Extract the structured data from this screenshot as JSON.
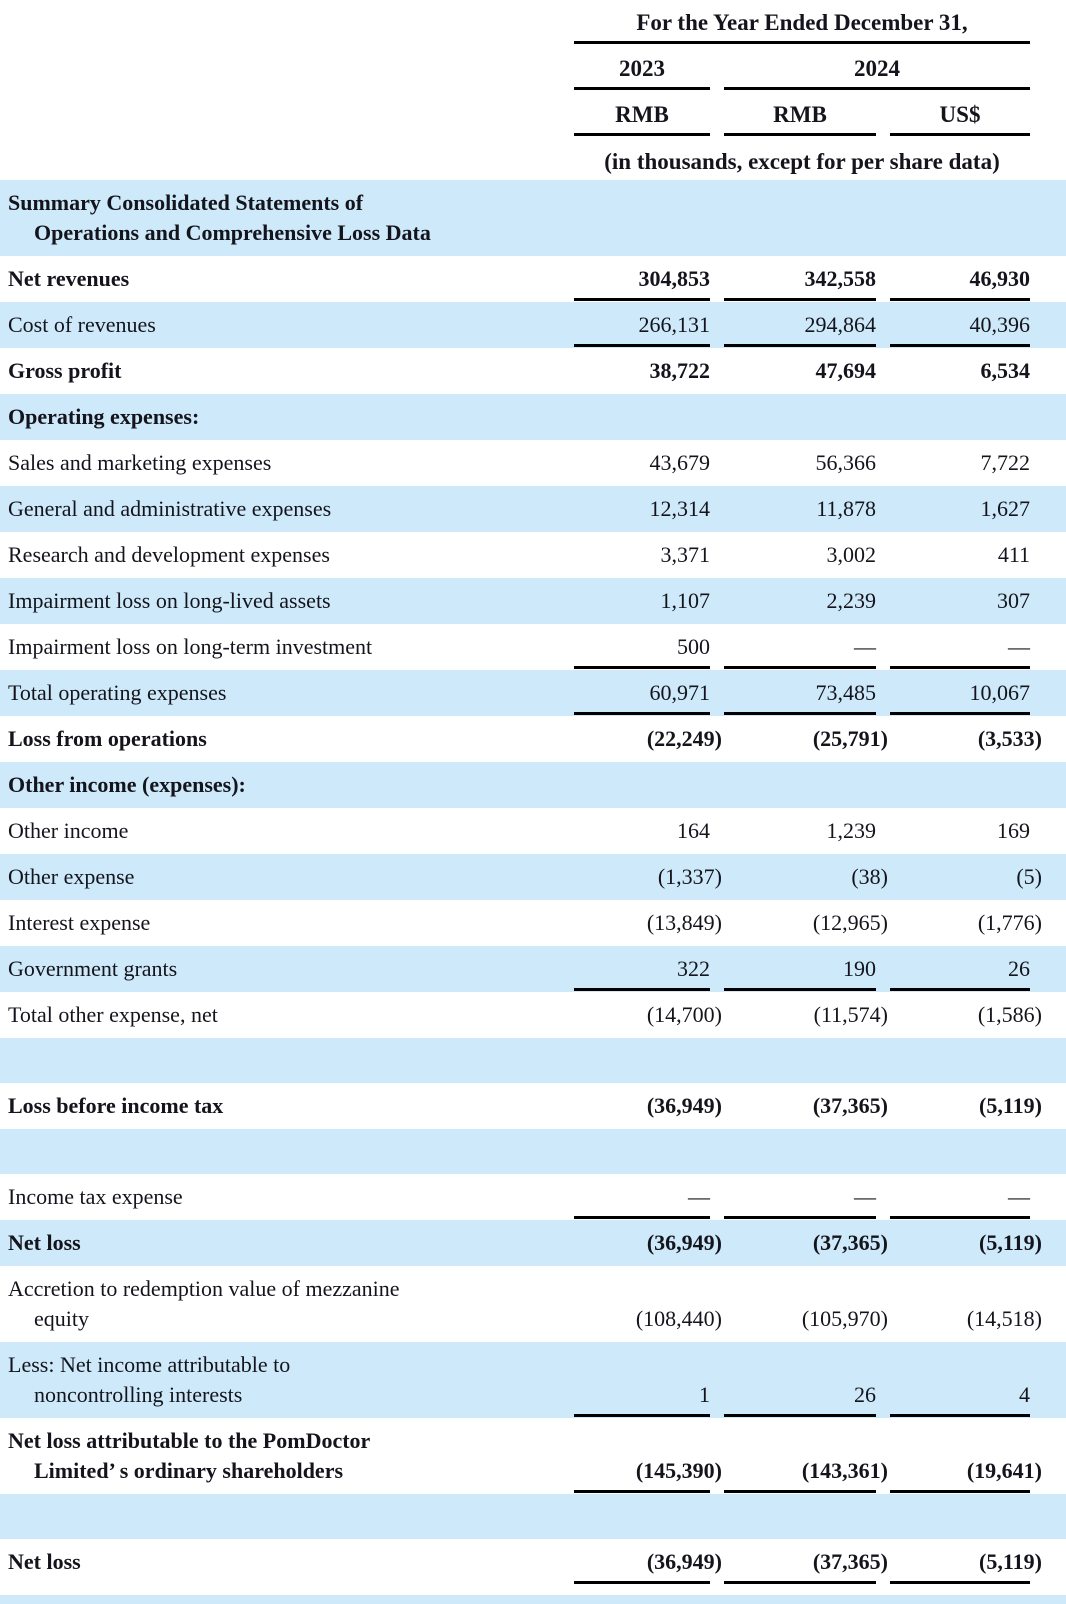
{
  "header": {
    "period_title": "For the Year Ended December 31,",
    "year_groups": [
      {
        "label": "2023"
      },
      {
        "label": "2024"
      }
    ],
    "units": [
      "RMB",
      "RMB",
      "US$"
    ],
    "note": "(in thousands, except for per share data)"
  },
  "colors": {
    "row_highlight": "#cde9fa",
    "rule": "#000000",
    "text": "#14141c"
  },
  "rows": [
    {
      "label_lines": [
        "Summary Consolidated Statements of",
        "Operations and Comprehensive Loss Data"
      ],
      "values": [
        "",
        "",
        ""
      ],
      "bold": true,
      "shaded": true
    },
    {
      "label_lines": [
        "Net revenues"
      ],
      "values": [
        "304,853",
        "342,558",
        "46,930"
      ],
      "bold": true,
      "rule": true
    },
    {
      "label_lines": [
        "Cost of revenues"
      ],
      "values": [
        "266,131",
        "294,864",
        "40,396"
      ],
      "shaded": true,
      "rule": true
    },
    {
      "label_lines": [
        "Gross profit"
      ],
      "values": [
        "38,722",
        "47,694",
        "6,534"
      ],
      "bold": true
    },
    {
      "label_lines": [
        "Operating expenses:"
      ],
      "values": [
        "",
        "",
        ""
      ],
      "bold": true,
      "shaded": true
    },
    {
      "label_lines": [
        "Sales and marketing expenses"
      ],
      "values": [
        "43,679",
        "56,366",
        "7,722"
      ]
    },
    {
      "label_lines": [
        "General and administrative expenses"
      ],
      "values": [
        "12,314",
        "11,878",
        "1,627"
      ],
      "shaded": true
    },
    {
      "label_lines": [
        "Research and development expenses"
      ],
      "values": [
        "3,371",
        "3,002",
        "411"
      ]
    },
    {
      "label_lines": [
        "Impairment loss on long-lived assets"
      ],
      "values": [
        "1,107",
        "2,239",
        "307"
      ],
      "shaded": true
    },
    {
      "label_lines": [
        "Impairment loss on long-term investment"
      ],
      "values": [
        "500",
        "—",
        "—"
      ],
      "rule": true
    },
    {
      "label_lines": [
        "Total operating expenses"
      ],
      "values": [
        "60,971",
        "73,485",
        "10,067"
      ],
      "shaded": true,
      "rule": true
    },
    {
      "label_lines": [
        "Loss from operations"
      ],
      "values": [
        "(22,249)",
        "(25,791)",
        "(3,533)"
      ],
      "bold": true
    },
    {
      "label_lines": [
        "Other income (expenses):"
      ],
      "values": [
        "",
        "",
        ""
      ],
      "bold": true,
      "shaded": true
    },
    {
      "label_lines": [
        "Other income"
      ],
      "values": [
        "164",
        "1,239",
        "169"
      ]
    },
    {
      "label_lines": [
        "Other expense"
      ],
      "values": [
        "(1,337)",
        "(38)",
        "(5)"
      ],
      "shaded": true
    },
    {
      "label_lines": [
        "Interest expense"
      ],
      "values": [
        "(13,849)",
        "(12,965)",
        "(1,776)"
      ]
    },
    {
      "label_lines": [
        "Government grants"
      ],
      "values": [
        "322",
        "190",
        "26"
      ],
      "shaded": true,
      "rule": true
    },
    {
      "label_lines": [
        "Total other expense, net"
      ],
      "values": [
        "(14,700)",
        "(11,574)",
        "(1,586)"
      ]
    },
    {
      "type": "spacer",
      "shaded": true
    },
    {
      "label_lines": [
        "Loss before income tax"
      ],
      "values": [
        "(36,949)",
        "(37,365)",
        "(5,119)"
      ],
      "bold": true
    },
    {
      "type": "spacer",
      "shaded": true
    },
    {
      "label_lines": [
        "Income tax expense"
      ],
      "values": [
        "—",
        "—",
        "—"
      ],
      "rule": true
    },
    {
      "label_lines": [
        "Net loss"
      ],
      "values": [
        "(36,949)",
        "(37,365)",
        "(5,119)"
      ],
      "bold": true,
      "shaded": true
    },
    {
      "label_lines": [
        "Accretion to redemption value of mezzanine",
        "equity"
      ],
      "values": [
        "(108,440)",
        "(105,970)",
        "(14,518)"
      ]
    },
    {
      "label_lines": [
        "Less: Net income attributable to",
        "noncontrolling interests"
      ],
      "values": [
        "1",
        "26",
        "4"
      ],
      "shaded": true,
      "rule": true
    },
    {
      "label_lines": [
        "Net loss attributable to the PomDoctor",
        "Limited’ s ordinary shareholders"
      ],
      "values": [
        "(145,390)",
        "(143,361)",
        "(19,641)"
      ],
      "bold": true,
      "rule": true
    },
    {
      "type": "spacer",
      "shaded": true
    },
    {
      "label_lines": [
        "Net loss"
      ],
      "values": [
        "(36,949)",
        "(37,365)",
        "(5,119)"
      ],
      "bold": true,
      "rule": true
    },
    {
      "type": "thin-strip",
      "shaded": true
    }
  ]
}
